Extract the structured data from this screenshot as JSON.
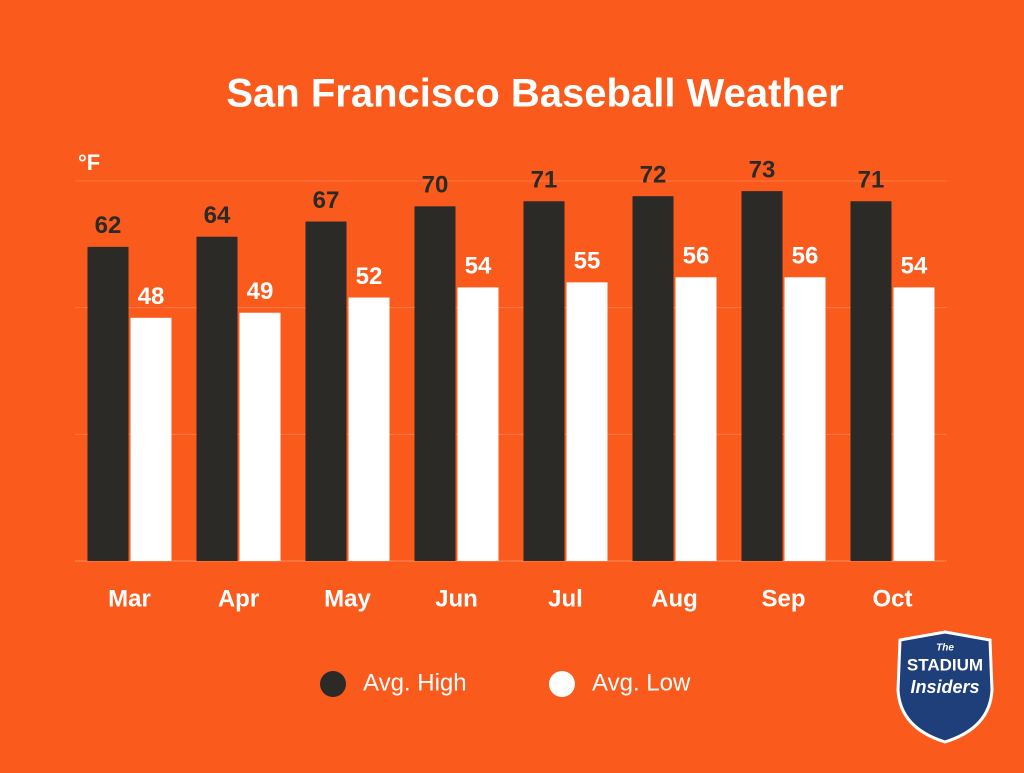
{
  "chart_data": {
    "type": "bar",
    "title": "San Francisco Baseball Weather",
    "y_label": "°F",
    "categories": [
      "Mar",
      "Apr",
      "May",
      "Jun",
      "Jul",
      "Aug",
      "Sep",
      "Oct"
    ],
    "series": [
      {
        "name": "Avg. High",
        "color": "#2b2a26",
        "values": [
          62,
          64,
          67,
          70,
          71,
          72,
          73,
          71
        ]
      },
      {
        "name": "Avg. Low",
        "color": "#ffffff",
        "values": [
          48,
          49,
          52,
          54,
          55,
          56,
          56,
          54
        ]
      }
    ],
    "ylim": [
      0,
      75
    ],
    "yticks": [
      0,
      25,
      50,
      75
    ],
    "grid": true,
    "legend": "bottom",
    "logo": {
      "line1": "The",
      "line2": "STADIUM",
      "line3": "Insiders"
    }
  }
}
